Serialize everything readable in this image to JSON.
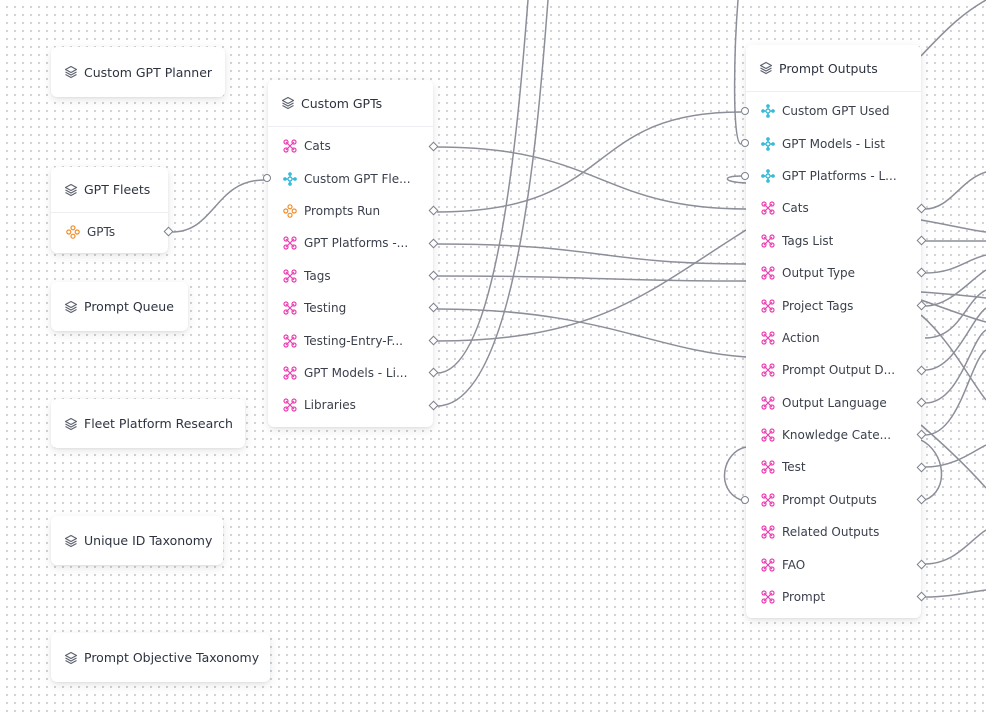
{
  "colors": {
    "pink": "#ea3fb1",
    "cyan": "#2ab4d6",
    "orange": "#f28c28",
    "edge": "#8c8f99",
    "gray_icon": "#5e6370"
  },
  "icons": {
    "table": "table-layers-icon",
    "pink_link": "link-chain-icon",
    "cyan_link": "lookup-link-icon",
    "orange_link": "rollup-link-icon"
  },
  "nodes": {
    "custom_gpt_planner": {
      "title": "Custom GPT Planner"
    },
    "gpt_fleets": {
      "title": "GPT Fleets",
      "fields": [
        {
          "label": "GPTs",
          "icon": "rollup-link-icon"
        }
      ]
    },
    "prompt_queue": {
      "title": "Prompt Queue"
    },
    "fleet_platform_research": {
      "title": "Fleet Platform Research"
    },
    "unique_id_taxonomy": {
      "title": "Unique ID Taxonomy"
    },
    "prompt_objective_taxonomy": {
      "title": "Prompt Objective Taxonomy"
    },
    "custom_gpts": {
      "title": "Custom GPTs",
      "fields": [
        {
          "label": "Cats",
          "icon": "link-chain-icon"
        },
        {
          "label": "Custom GPT Fle...",
          "icon": "lookup-link-icon"
        },
        {
          "label": "Prompts Run",
          "icon": "rollup-link-icon"
        },
        {
          "label": "GPT Platforms -...",
          "icon": "link-chain-icon"
        },
        {
          "label": "Tags",
          "icon": "link-chain-icon"
        },
        {
          "label": "Testing",
          "icon": "link-chain-icon"
        },
        {
          "label": "Testing-Entry-F...",
          "icon": "link-chain-icon"
        },
        {
          "label": "GPT Models - Li...",
          "icon": "link-chain-icon"
        },
        {
          "label": "Libraries",
          "icon": "link-chain-icon"
        }
      ]
    },
    "prompt_outputs": {
      "title": "Prompt Outputs",
      "fields": [
        {
          "label": "Custom GPT Used",
          "icon": "lookup-link-icon"
        },
        {
          "label": "GPT Models - List",
          "icon": "lookup-link-icon"
        },
        {
          "label": "GPT Platforms - L...",
          "icon": "lookup-link-icon"
        },
        {
          "label": "Cats",
          "icon": "link-chain-icon"
        },
        {
          "label": "Tags List",
          "icon": "link-chain-icon"
        },
        {
          "label": "Output Type",
          "icon": "link-chain-icon"
        },
        {
          "label": "Project Tags",
          "icon": "link-chain-icon"
        },
        {
          "label": "Action",
          "icon": "link-chain-icon"
        },
        {
          "label": "Prompt Output D...",
          "icon": "link-chain-icon"
        },
        {
          "label": "Output Language",
          "icon": "link-chain-icon"
        },
        {
          "label": "Knowledge Cate...",
          "icon": "link-chain-icon"
        },
        {
          "label": "Test",
          "icon": "link-chain-icon"
        },
        {
          "label": "Prompt Outputs",
          "icon": "link-chain-icon"
        },
        {
          "label": "Related Outputs",
          "icon": "link-chain-icon"
        },
        {
          "label": "FAO",
          "icon": "link-chain-icon"
        },
        {
          "label": "Prompt",
          "icon": "link-chain-icon"
        }
      ]
    }
  }
}
